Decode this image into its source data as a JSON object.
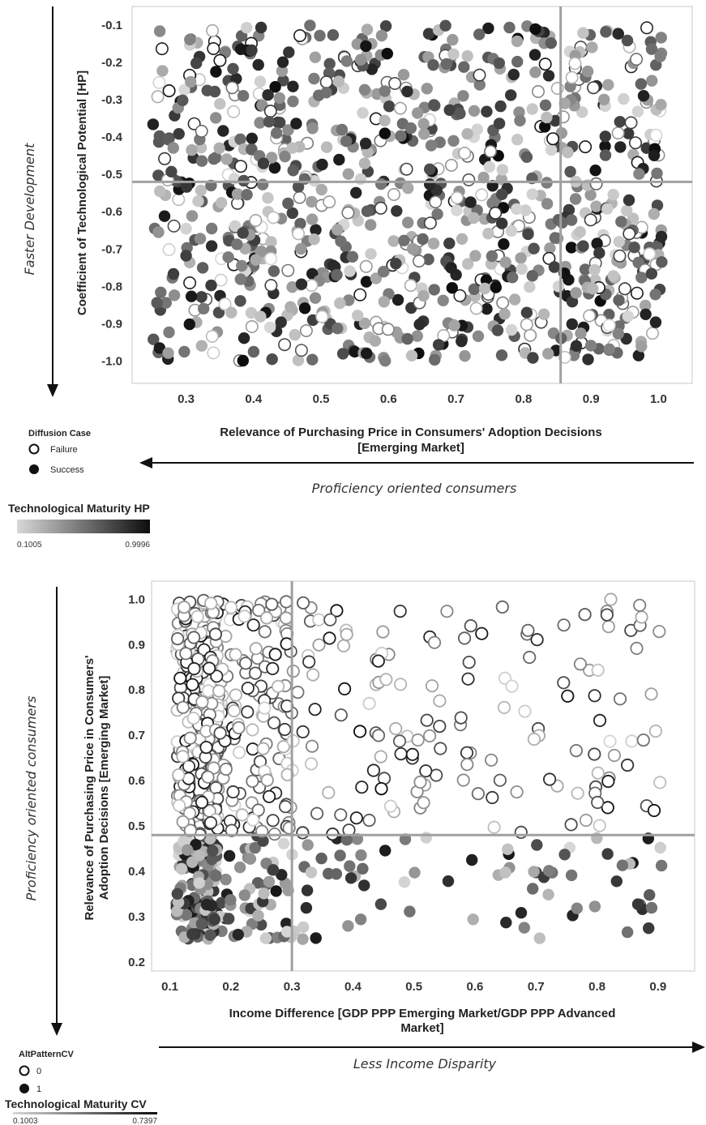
{
  "chart_data": [
    {
      "type": "scatter",
      "xlabel": [
        "Relevance of Purchasing Price in Consumers' Adoption Decisions",
        "[Emerging Market]"
      ],
      "ylabel": "Coefficient of Technological Potential [HP]",
      "xlim": [
        0.22,
        1.05
      ],
      "ylim": [
        -1.06,
        -0.05
      ],
      "x_ticks": [
        "0.3",
        "0.4",
        "0.5",
        "0.6",
        "0.7",
        "0.8",
        "0.9",
        "1.0"
      ],
      "y_ticks": [
        "-0.1",
        "-0.2",
        "-0.3",
        "-0.4",
        "-0.5",
        "-0.6",
        "-0.7",
        "-0.8",
        "-0.9",
        "-1.0"
      ],
      "reference_lines": {
        "x": 0.855,
        "y": -0.52
      },
      "grid": false,
      "side_labels": {
        "vertical": "Faster Development",
        "horizontal": "Proficiency oriented consumers"
      },
      "shape_legend": {
        "title": "Diffusion Case",
        "items": [
          "Failure",
          "Success"
        ]
      },
      "color_legend": {
        "title": "Technological Maturity HP",
        "min": "0.1005",
        "max": "0.9996"
      },
      "point_count": 950,
      "point_rule": "points spread uniformly over the plot area; hollow (Failure) and filled (Success) circles mixed throughout; grey intensity encodes Technological Maturity HP"
    },
    {
      "type": "scatter",
      "xlabel": [
        "Income Difference [GDP PPP Emerging Market/GDP PPP Advanced",
        "Market]"
      ],
      "ylabel": [
        "Relevance of Purchasing Price in Consumers'",
        "Adoption Decisions [Emerging Market]"
      ],
      "xlim": [
        0.07,
        0.96
      ],
      "ylim": [
        0.18,
        1.04
      ],
      "x_ticks": [
        "0.1",
        "0.2",
        "0.3",
        "0.4",
        "0.5",
        "0.6",
        "0.7",
        "0.8",
        "0.9"
      ],
      "y_ticks": [
        "1.0",
        "0.9",
        "0.8",
        "0.7",
        "0.6",
        "0.5",
        "0.4",
        "0.3",
        "0.2"
      ],
      "reference_lines": {
        "x": 0.3,
        "y": 0.48
      },
      "grid": false,
      "side_labels": {
        "vertical": "Proficiency oriented consumers",
        "horizontal": "Less Income Disparity"
      },
      "shape_legend": {
        "title": "AltPatternCV",
        "items": [
          "0",
          "1"
        ]
      },
      "color_legend": {
        "title": "Technological Maturity CV",
        "min": "0.1003",
        "max": "0.7397"
      },
      "point_count": 820,
      "point_rule": "AltPatternCV 0 (hollow) above y = 0.48, AltPatternCV 1 (filled) below; points dense near x = 0.1-0.3 and sparse toward x = 0.9"
    }
  ]
}
